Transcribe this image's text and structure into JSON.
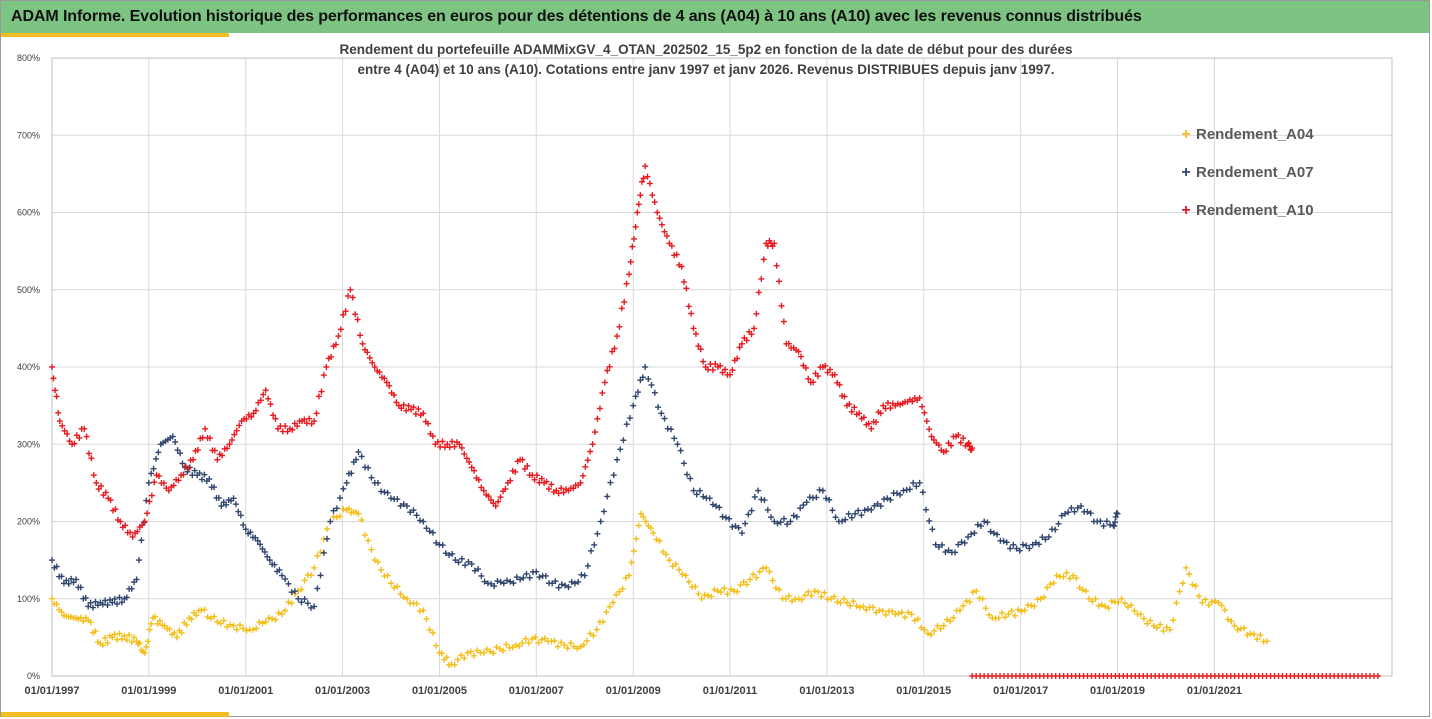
{
  "header": {
    "title": "ADAM Informe. Evolution historique des performances en euros pour des détentions de 4 ans (A04) à 10 ans (A10) avec les revenus connus distribués"
  },
  "colors": {
    "header_bg": "#7dc382",
    "accent_gold": "#f0be23",
    "A04": "#f4be1a",
    "A07": "#30466e",
    "A10": "#e8191e",
    "grid": "#d9d9d9",
    "axis_text": "#404040"
  },
  "chart_data": {
    "type": "scatter",
    "title_line1": "Rendement du portefeuille ADAMMixGV_4_OTAN_202502_15_5p2  en fonction de la date de début pour des durées",
    "title_line2": "entre 4 (A04) et 10 ans (A10). Cotations entre janv 1997 et janv 2026. Revenus DISTRIBUES depuis janv 1997.",
    "xlabel": "",
    "ylabel": "",
    "x_axis": {
      "type": "date",
      "min": "1997-01-01",
      "max": "2024-09-01",
      "ticks": [
        "01/01/1997",
        "01/01/1999",
        "01/01/2001",
        "01/01/2003",
        "01/01/2005",
        "01/01/2007",
        "01/01/2009",
        "01/01/2011",
        "01/01/2013",
        "01/01/2015",
        "01/01/2017",
        "01/01/2019",
        "01/01/2021"
      ]
    },
    "y_axis": {
      "min": 0,
      "max": 800,
      "ticks": [
        "0%",
        "100%",
        "200%",
        "300%",
        "400%",
        "500%",
        "600%",
        "700%",
        "800%"
      ]
    },
    "grid": true,
    "legend_position": "right",
    "marker": "+",
    "series": [
      {
        "name": "Rendement_A04",
        "color": "#f4be1a",
        "points": [
          [
            "1997-01-01",
            100
          ],
          [
            "1997-04-01",
            78
          ],
          [
            "1997-07-01",
            75
          ],
          [
            "1997-10-01",
            72
          ],
          [
            "1998-01-01",
            42
          ],
          [
            "1998-04-01",
            50
          ],
          [
            "1998-07-01",
            52
          ],
          [
            "1998-10-01",
            45
          ],
          [
            "1998-12-01",
            30
          ],
          [
            "1999-02-01",
            75
          ],
          [
            "1999-05-01",
            65
          ],
          [
            "1999-08-01",
            50
          ],
          [
            "1999-11-01",
            75
          ],
          [
            "2000-02-01",
            85
          ],
          [
            "2000-06-01",
            70
          ],
          [
            "2000-10-01",
            65
          ],
          [
            "2001-02-01",
            60
          ],
          [
            "2001-06-01",
            70
          ],
          [
            "2001-10-01",
            80
          ],
          [
            "2002-02-01",
            110
          ],
          [
            "2002-06-01",
            140
          ],
          [
            "2002-10-01",
            200
          ],
          [
            "2003-02-01",
            215
          ],
          [
            "2003-05-01",
            210
          ],
          [
            "2003-09-01",
            150
          ],
          [
            "2004-01-01",
            120
          ],
          [
            "2004-05-01",
            100
          ],
          [
            "2004-09-01",
            85
          ],
          [
            "2005-01-01",
            30
          ],
          [
            "2005-04-01",
            15
          ],
          [
            "2005-08-01",
            30
          ],
          [
            "2005-12-01",
            30
          ],
          [
            "2006-04-01",
            35
          ],
          [
            "2006-08-01",
            40
          ],
          [
            "2006-12-01",
            48
          ],
          [
            "2007-04-01",
            45
          ],
          [
            "2007-08-01",
            40
          ],
          [
            "2007-12-01",
            38
          ],
          [
            "2008-04-01",
            60
          ],
          [
            "2008-08-01",
            95
          ],
          [
            "2008-12-01",
            130
          ],
          [
            "2009-03-01",
            210
          ],
          [
            "2009-06-01",
            185
          ],
          [
            "2009-10-01",
            150
          ],
          [
            "2010-02-01",
            130
          ],
          [
            "2010-06-01",
            100
          ],
          [
            "2010-10-01",
            110
          ],
          [
            "2011-02-01",
            110
          ],
          [
            "2011-06-01",
            125
          ],
          [
            "2011-10-01",
            140
          ],
          [
            "2012-02-01",
            100
          ],
          [
            "2012-06-01",
            100
          ],
          [
            "2012-10-01",
            110
          ],
          [
            "2013-02-01",
            100
          ],
          [
            "2013-06-01",
            95
          ],
          [
            "2013-10-01",
            90
          ],
          [
            "2014-02-01",
            85
          ],
          [
            "2014-06-01",
            80
          ],
          [
            "2014-10-01",
            80
          ],
          [
            "2015-02-01",
            55
          ],
          [
            "2015-06-01",
            65
          ],
          [
            "2015-10-01",
            85
          ],
          [
            "2016-02-01",
            110
          ],
          [
            "2016-06-01",
            75
          ],
          [
            "2016-10-01",
            80
          ],
          [
            "2017-02-01",
            85
          ],
          [
            "2017-06-01",
            100
          ],
          [
            "2017-10-01",
            130
          ],
          [
            "2018-02-01",
            130
          ],
          [
            "2018-06-01",
            100
          ],
          [
            "2018-10-01",
            90
          ],
          [
            "2019-02-01",
            100
          ],
          [
            "2019-06-01",
            80
          ],
          [
            "2019-10-01",
            65
          ],
          [
            "2020-02-01",
            60
          ],
          [
            "2020-06-01",
            140
          ],
          [
            "2020-10-01",
            95
          ],
          [
            "2021-02-01",
            95
          ],
          [
            "2021-06-01",
            65
          ],
          [
            "2021-10-01",
            55
          ],
          [
            "2022-02-01",
            45
          ]
        ]
      },
      {
        "name": "Rendement_A07",
        "color": "#30466e",
        "points": [
          [
            "1997-01-01",
            150
          ],
          [
            "1997-04-01",
            120
          ],
          [
            "1997-07-01",
            125
          ],
          [
            "1997-10-01",
            90
          ],
          [
            "1998-01-01",
            95
          ],
          [
            "1998-04-01",
            95
          ],
          [
            "1998-07-01",
            100
          ],
          [
            "1998-10-01",
            125
          ],
          [
            "1999-01-01",
            250
          ],
          [
            "1999-04-01",
            300
          ],
          [
            "1999-07-01",
            310
          ],
          [
            "1999-10-01",
            270
          ],
          [
            "2000-01-01",
            260
          ],
          [
            "2000-04-01",
            255
          ],
          [
            "2000-07-01",
            220
          ],
          [
            "2000-10-01",
            230
          ],
          [
            "2001-01-01",
            190
          ],
          [
            "2001-04-01",
            175
          ],
          [
            "2001-07-01",
            150
          ],
          [
            "2001-10-01",
            130
          ],
          [
            "2002-02-01",
            100
          ],
          [
            "2002-06-01",
            90
          ],
          [
            "2002-10-01",
            200
          ],
          [
            "2003-02-01",
            250
          ],
          [
            "2003-05-01",
            290
          ],
          [
            "2003-09-01",
            250
          ],
          [
            "2004-01-01",
            230
          ],
          [
            "2004-05-01",
            220
          ],
          [
            "2004-09-01",
            200
          ],
          [
            "2005-01-01",
            170
          ],
          [
            "2005-05-01",
            150
          ],
          [
            "2005-09-01",
            145
          ],
          [
            "2006-01-01",
            120
          ],
          [
            "2006-05-01",
            120
          ],
          [
            "2006-09-01",
            125
          ],
          [
            "2007-01-01",
            135
          ],
          [
            "2007-05-01",
            120
          ],
          [
            "2007-09-01",
            115
          ],
          [
            "2008-01-01",
            130
          ],
          [
            "2008-05-01",
            200
          ],
          [
            "2008-09-01",
            280
          ],
          [
            "2009-01-01",
            350
          ],
          [
            "2009-04-01",
            400
          ],
          [
            "2009-08-01",
            340
          ],
          [
            "2009-12-01",
            300
          ],
          [
            "2010-04-01",
            240
          ],
          [
            "2010-08-01",
            230
          ],
          [
            "2010-12-01",
            205
          ],
          [
            "2011-04-01",
            185
          ],
          [
            "2011-08-01",
            240
          ],
          [
            "2011-12-01",
            200
          ],
          [
            "2012-04-01",
            200
          ],
          [
            "2012-08-01",
            225
          ],
          [
            "2012-12-01",
            240
          ],
          [
            "2013-04-01",
            200
          ],
          [
            "2013-08-01",
            210
          ],
          [
            "2013-12-01",
            215
          ],
          [
            "2014-04-01",
            230
          ],
          [
            "2014-08-01",
            240
          ],
          [
            "2014-12-01",
            250
          ],
          [
            "2015-04-01",
            170
          ],
          [
            "2015-08-01",
            160
          ],
          [
            "2015-12-01",
            180
          ],
          [
            "2016-04-01",
            200
          ],
          [
            "2016-08-01",
            175
          ],
          [
            "2016-12-01",
            165
          ],
          [
            "2017-04-01",
            170
          ],
          [
            "2017-08-01",
            180
          ],
          [
            "2017-12-01",
            210
          ],
          [
            "2018-04-01",
            220
          ],
          [
            "2018-08-01",
            200
          ],
          [
            "2018-12-01",
            195
          ],
          [
            "2019-01-01",
            210
          ]
        ]
      },
      {
        "name": "Rendement_A10",
        "color": "#e8191e",
        "points": [
          [
            "1997-01-01",
            400
          ],
          [
            "1997-03-01",
            330
          ],
          [
            "1997-06-01",
            300
          ],
          [
            "1997-09-01",
            320
          ],
          [
            "1997-12-01",
            250
          ],
          [
            "1998-03-01",
            230
          ],
          [
            "1998-06-01",
            200
          ],
          [
            "1998-09-01",
            180
          ],
          [
            "1998-12-01",
            200
          ],
          [
            "1999-03-01",
            260
          ],
          [
            "1999-06-01",
            240
          ],
          [
            "1999-09-01",
            260
          ],
          [
            "1999-12-01",
            280
          ],
          [
            "2000-03-01",
            320
          ],
          [
            "2000-06-01",
            280
          ],
          [
            "2000-09-01",
            300
          ],
          [
            "2000-12-01",
            330
          ],
          [
            "2001-03-01",
            340
          ],
          [
            "2001-06-01",
            370
          ],
          [
            "2001-09-01",
            320
          ],
          [
            "2001-12-01",
            320
          ],
          [
            "2002-03-01",
            330
          ],
          [
            "2002-06-01",
            330
          ],
          [
            "2002-09-01",
            400
          ],
          [
            "2002-12-01",
            440
          ],
          [
            "2003-03-01",
            500
          ],
          [
            "2003-06-01",
            430
          ],
          [
            "2003-09-01",
            400
          ],
          [
            "2003-12-01",
            380
          ],
          [
            "2004-03-01",
            350
          ],
          [
            "2004-06-01",
            345
          ],
          [
            "2004-09-01",
            340
          ],
          [
            "2004-12-01",
            300
          ],
          [
            "2005-03-01",
            300
          ],
          [
            "2005-06-01",
            300
          ],
          [
            "2005-09-01",
            270
          ],
          [
            "2005-12-01",
            240
          ],
          [
            "2006-03-01",
            220
          ],
          [
            "2006-06-01",
            250
          ],
          [
            "2006-09-01",
            280
          ],
          [
            "2006-12-01",
            260
          ],
          [
            "2007-03-01",
            250
          ],
          [
            "2007-06-01",
            240
          ],
          [
            "2007-09-01",
            240
          ],
          [
            "2007-12-01",
            250
          ],
          [
            "2008-03-01",
            300
          ],
          [
            "2008-06-01",
            380
          ],
          [
            "2008-09-01",
            440
          ],
          [
            "2008-12-01",
            520
          ],
          [
            "2009-02-01",
            600
          ],
          [
            "2009-04-01",
            660
          ],
          [
            "2009-07-01",
            600
          ],
          [
            "2009-10-01",
            560
          ],
          [
            "2010-01-01",
            530
          ],
          [
            "2010-04-01",
            450
          ],
          [
            "2010-07-01",
            400
          ],
          [
            "2010-10-01",
            400
          ],
          [
            "2011-01-01",
            390
          ],
          [
            "2011-04-01",
            430
          ],
          [
            "2011-07-01",
            450
          ],
          [
            "2011-10-01",
            560
          ],
          [
            "2011-12-01",
            560
          ],
          [
            "2012-03-01",
            430
          ],
          [
            "2012-06-01",
            420
          ],
          [
            "2012-09-01",
            380
          ],
          [
            "2012-12-01",
            400
          ],
          [
            "2013-03-01",
            390
          ],
          [
            "2013-06-01",
            350
          ],
          [
            "2013-09-01",
            340
          ],
          [
            "2013-12-01",
            320
          ],
          [
            "2014-03-01",
            350
          ],
          [
            "2014-06-01",
            350
          ],
          [
            "2014-09-01",
            355
          ],
          [
            "2014-12-01",
            360
          ],
          [
            "2015-03-01",
            310
          ],
          [
            "2015-06-01",
            290
          ],
          [
            "2015-09-01",
            310
          ],
          [
            "2015-12-01",
            300
          ],
          [
            "2016-01-01",
            295
          ]
        ]
      }
    ],
    "zero_band": {
      "color": "#e8191e",
      "from": "2016-01-01",
      "to": "2024-06-01",
      "value": 0
    }
  }
}
